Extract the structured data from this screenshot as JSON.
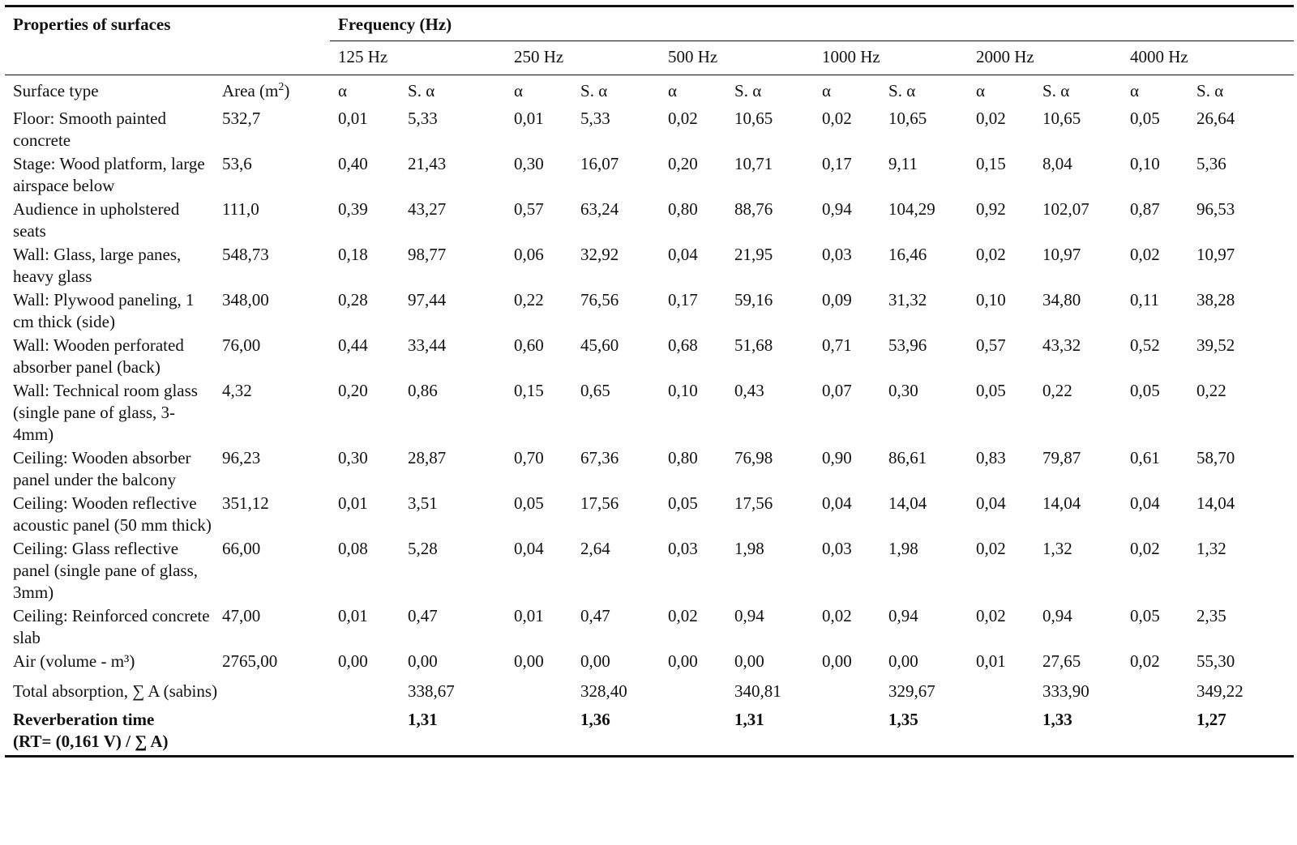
{
  "header": {
    "properties_label": "Properties of surfaces",
    "frequency_label": "Frequency (Hz)",
    "frequencies": [
      "125 Hz",
      "250 Hz",
      "500 Hz",
      "1000 Hz",
      "2000 Hz",
      "4000 Hz"
    ],
    "surface_type_label": "Surface type",
    "area_label": "Area (m",
    "area_sup": "2",
    "area_close": ")",
    "alpha_label": "α",
    "salpha_label": "S. α"
  },
  "rows": [
    {
      "surface": "Floor: Smooth painted concrete",
      "area": "532,7",
      "values": [
        [
          "0,01",
          "5,33"
        ],
        [
          "0,01",
          "5,33"
        ],
        [
          "0,02",
          "10,65"
        ],
        [
          "0,02",
          "10,65"
        ],
        [
          "0,02",
          "10,65"
        ],
        [
          "0,05",
          "26,64"
        ]
      ]
    },
    {
      "surface": "Stage: Wood platform, large airspace below",
      "area": "53,6",
      "values": [
        [
          "0,40",
          "21,43"
        ],
        [
          "0,30",
          "16,07"
        ],
        [
          "0,20",
          "10,71"
        ],
        [
          "0,17",
          "9,11"
        ],
        [
          "0,15",
          "8,04"
        ],
        [
          "0,10",
          "5,36"
        ]
      ]
    },
    {
      "surface": "Audience in upholstered seats",
      "area": "111,0",
      "values": [
        [
          "0,39",
          "43,27"
        ],
        [
          "0,57",
          "63,24"
        ],
        [
          "0,80",
          "88,76"
        ],
        [
          "0,94",
          "104,29"
        ],
        [
          "0,92",
          "102,07"
        ],
        [
          "0,87",
          "96,53"
        ]
      ]
    },
    {
      "surface": "Wall: Glass, large panes, heavy glass",
      "area": "548,73",
      "values": [
        [
          "0,18",
          "98,77"
        ],
        [
          "0,06",
          "32,92"
        ],
        [
          "0,04",
          "21,95"
        ],
        [
          "0,03",
          "16,46"
        ],
        [
          "0,02",
          "10,97"
        ],
        [
          "0,02",
          "10,97"
        ]
      ]
    },
    {
      "surface": "Wall: Plywood paneling, 1 cm thick (side)",
      "area": "348,00",
      "values": [
        [
          "0,28",
          "97,44"
        ],
        [
          "0,22",
          "76,56"
        ],
        [
          "0,17",
          "59,16"
        ],
        [
          "0,09",
          "31,32"
        ],
        [
          "0,10",
          "34,80"
        ],
        [
          "0,11",
          "38,28"
        ]
      ]
    },
    {
      "surface": "Wall: Wooden perforated absorber panel (back)",
      "area": "76,00",
      "values": [
        [
          "0,44",
          "33,44"
        ],
        [
          "0,60",
          "45,60"
        ],
        [
          "0,68",
          "51,68"
        ],
        [
          "0,71",
          "53,96"
        ],
        [
          "0,57",
          "43,32"
        ],
        [
          "0,52",
          "39,52"
        ]
      ]
    },
    {
      "surface": "Wall: Technical room glass (single pane of glass, 3-4mm)",
      "area": "4,32",
      "values": [
        [
          "0,20",
          "0,86"
        ],
        [
          "0,15",
          "0,65"
        ],
        [
          "0,10",
          "0,43"
        ],
        [
          "0,07",
          "0,30"
        ],
        [
          "0,05",
          "0,22"
        ],
        [
          "0,05",
          "0,22"
        ]
      ]
    },
    {
      "surface": "Ceiling: Wooden absorber panel under the balcony",
      "area": "96,23",
      "values": [
        [
          "0,30",
          "28,87"
        ],
        [
          "0,70",
          "67,36"
        ],
        [
          "0,80",
          "76,98"
        ],
        [
          "0,90",
          "86,61"
        ],
        [
          "0,83",
          "79,87"
        ],
        [
          "0,61",
          "58,70"
        ]
      ]
    },
    {
      "surface": "Ceiling: Wooden reflective acoustic panel (50 mm thick)",
      "area": "351,12",
      "values": [
        [
          "0,01",
          "3,51"
        ],
        [
          "0,05",
          "17,56"
        ],
        [
          "0,05",
          "17,56"
        ],
        [
          "0,04",
          "14,04"
        ],
        [
          "0,04",
          "14,04"
        ],
        [
          "0,04",
          "14,04"
        ]
      ]
    },
    {
      "surface": "Ceiling: Glass reflective panel (single pane of glass, 3mm)",
      "area": "66,00",
      "values": [
        [
          "0,08",
          "5,28"
        ],
        [
          "0,04",
          "2,64"
        ],
        [
          "0,03",
          "1,98"
        ],
        [
          "0,03",
          "1,98"
        ],
        [
          "0,02",
          "1,32"
        ],
        [
          "0,02",
          "1,32"
        ]
      ]
    },
    {
      "surface": "Ceiling: Reinforced concrete slab",
      "area": "47,00",
      "values": [
        [
          "0,01",
          "0,47"
        ],
        [
          "0,01",
          "0,47"
        ],
        [
          "0,02",
          "0,94"
        ],
        [
          "0,02",
          "0,94"
        ],
        [
          "0,02",
          "0,94"
        ],
        [
          "0,05",
          "2,35"
        ]
      ]
    },
    {
      "surface": "Air (volume - m³)",
      "area": "2765,00",
      "values": [
        [
          "0,00",
          "0,00"
        ],
        [
          "0,00",
          "0,00"
        ],
        [
          "0,00",
          "0,00"
        ],
        [
          "0,00",
          "0,00"
        ],
        [
          "0,01",
          "27,65"
        ],
        [
          "0,02",
          "55,30"
        ]
      ]
    }
  ],
  "total": {
    "label": "Total absorption, ∑ A (sabins)",
    "values": [
      "338,67",
      "328,40",
      "340,81",
      "329,67",
      "333,90",
      "349,22"
    ]
  },
  "reverb": {
    "label_line1": "Reverberation time",
    "label_line2": "(RT= (0,161 V) / ∑ A)",
    "values": [
      "1,31",
      "1,36",
      "1,31",
      "1,35",
      "1,33",
      "1,27"
    ]
  }
}
